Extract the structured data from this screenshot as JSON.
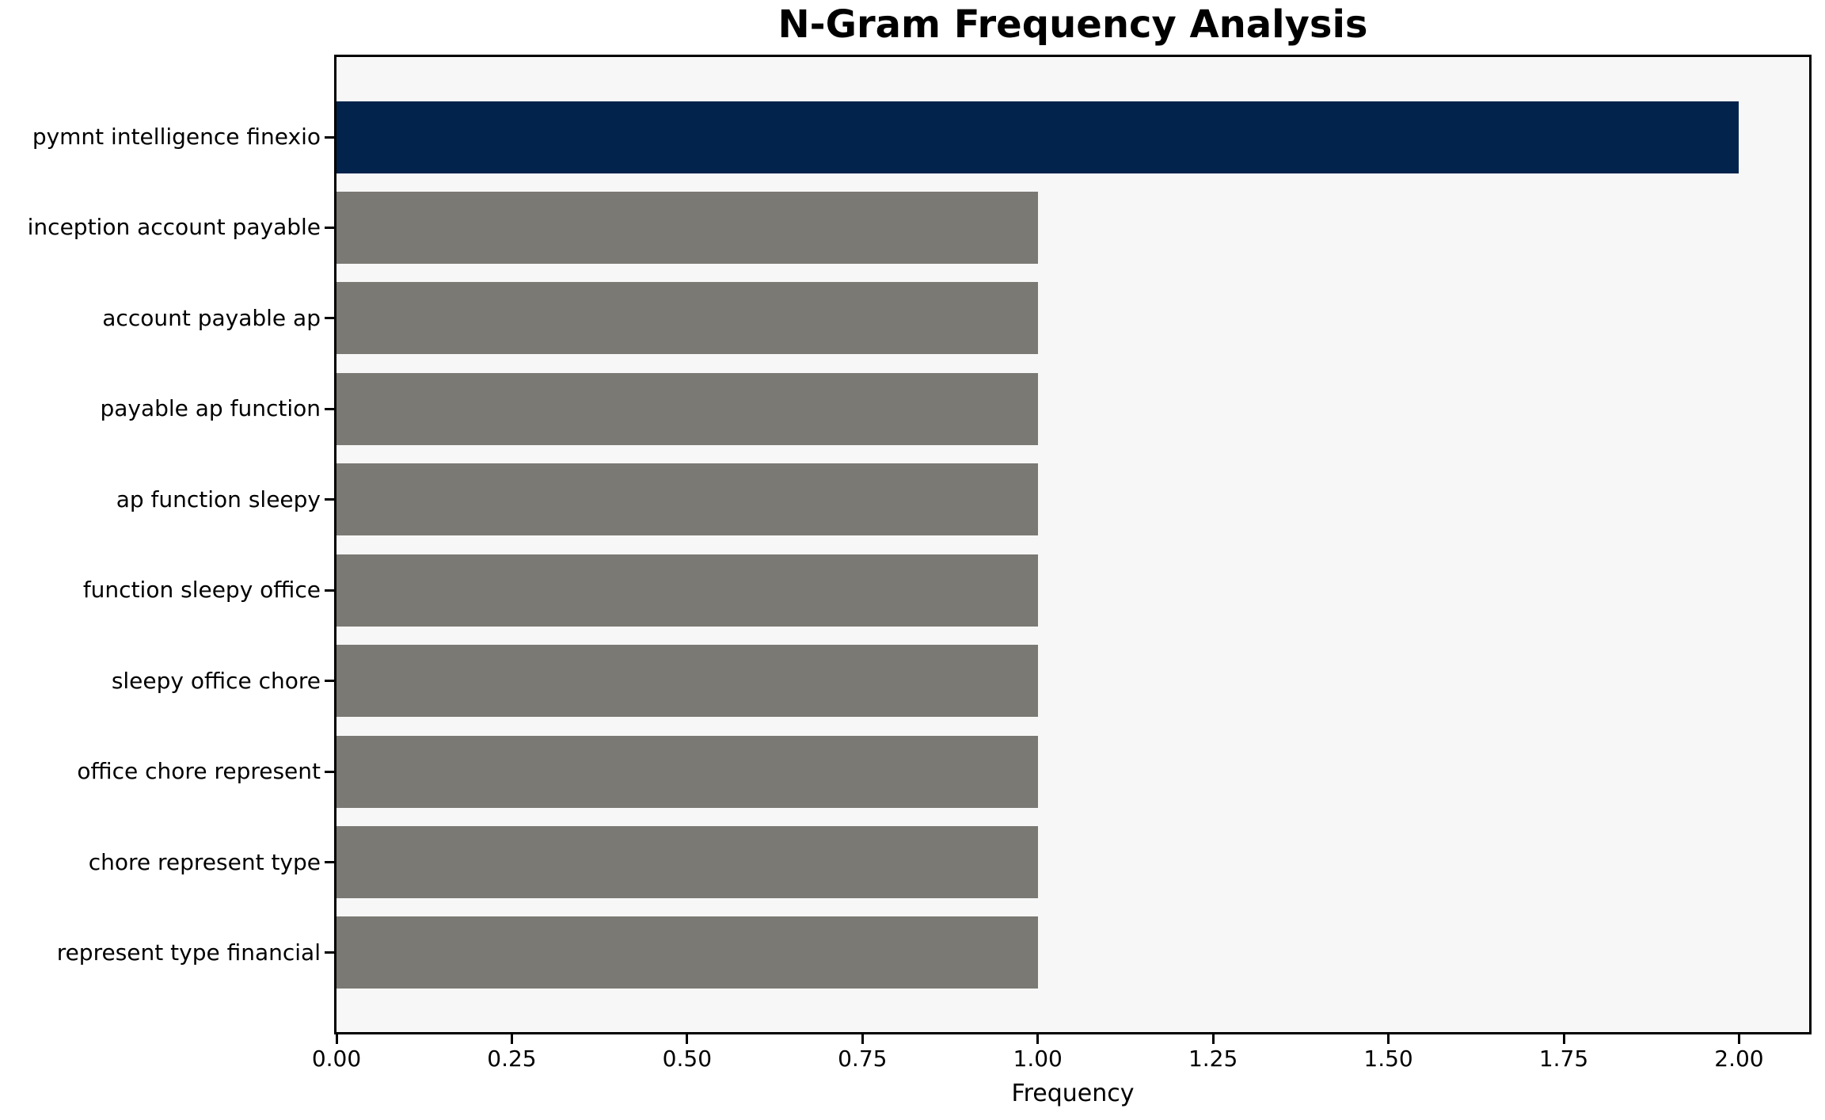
{
  "chart_data": {
    "type": "bar",
    "orientation": "horizontal",
    "title": "N-Gram Frequency Analysis",
    "xlabel": "Frequency",
    "ylabel": "",
    "categories": [
      "pymnt intelligence finexio",
      "inception account payable",
      "account payable ap",
      "payable ap function",
      "ap function sleepy",
      "function sleepy office",
      "sleepy office chore",
      "office chore represent",
      "chore represent type",
      "represent type financial"
    ],
    "values": [
      2,
      1,
      1,
      1,
      1,
      1,
      1,
      1,
      1,
      1
    ],
    "bar_colors": [
      "#02234c",
      "#7b7974",
      "#7b7974",
      "#7b7974",
      "#7b7974",
      "#7b7974",
      "#7b7974",
      "#7b7974",
      "#7b7974",
      "#7b7974"
    ],
    "highlight_color": "#02234c",
    "default_color": "#7b7974",
    "xlim": [
      0,
      2.1
    ],
    "xtick_values": [
      0,
      0.25,
      0.5,
      0.75,
      1.0,
      1.25,
      1.5,
      1.75,
      2.0
    ],
    "xtick_labels": [
      "0.00",
      "0.25",
      "0.50",
      "0.75",
      "1.00",
      "1.25",
      "1.50",
      "1.75",
      "2.00"
    ],
    "grid": false,
    "legend": null,
    "plot_background": "#f7f7f7",
    "spine_color": "#000000"
  }
}
